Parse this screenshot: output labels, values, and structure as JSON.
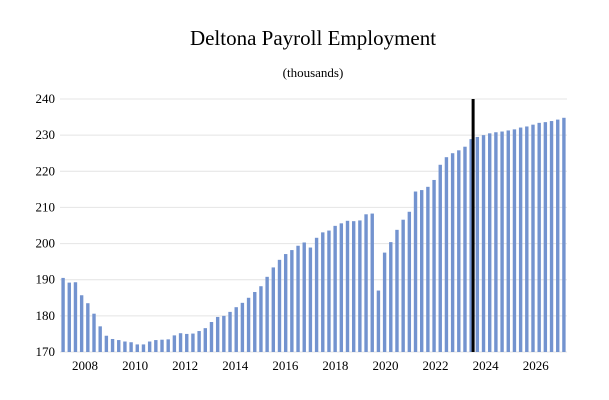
{
  "chart_data": {
    "type": "bar",
    "title": "Deltona Payroll Employment",
    "subtitle": "(thousands)",
    "ylim": [
      170,
      240
    ],
    "y_ticks": [
      170,
      180,
      190,
      200,
      210,
      220,
      230,
      240
    ],
    "x_tick_labels": [
      "2008",
      "2010",
      "2012",
      "2014",
      "2016",
      "2018",
      "2020",
      "2022",
      "2024",
      "2026"
    ],
    "x_range_years": [
      2007.0,
      2027.25
    ],
    "grid": "horizontal",
    "bar_color": "#7393cf",
    "forecast_marker_year": 2023.5,
    "series": [
      {
        "frequency": "quarterly",
        "start_quarter": "2007Q1",
        "values": [
          190.5,
          189.2,
          189.3,
          185.7,
          183.5,
          180.6,
          177.1,
          174.5,
          173.6,
          173.3,
          172.9,
          172.7,
          172.1,
          172.1,
          172.9,
          173.3,
          173.4,
          173.5,
          174.6,
          175.2,
          175.0,
          175.1,
          175.8,
          176.6,
          178.3,
          179.7,
          180.0,
          181.1,
          182.4,
          183.6,
          185.0,
          186.6,
          188.2,
          190.8,
          193.4,
          195.5,
          197.1,
          198.2,
          199.4,
          200.3,
          198.9,
          201.6,
          203.1,
          203.6,
          204.9,
          205.6,
          206.3,
          206.2,
          206.4,
          208.1,
          208.3,
          187.0,
          197.5,
          200.4,
          203.8,
          206.6,
          208.8,
          214.4,
          214.8,
          215.7,
          217.6,
          221.8,
          223.9,
          225.0,
          225.8,
          226.8,
          228.9,
          229.5,
          230.0,
          230.5,
          230.8,
          231.0,
          231.3,
          231.6,
          232.1,
          232.4,
          232.9,
          233.4,
          233.6,
          233.9,
          234.3,
          234.8
        ]
      }
    ]
  }
}
